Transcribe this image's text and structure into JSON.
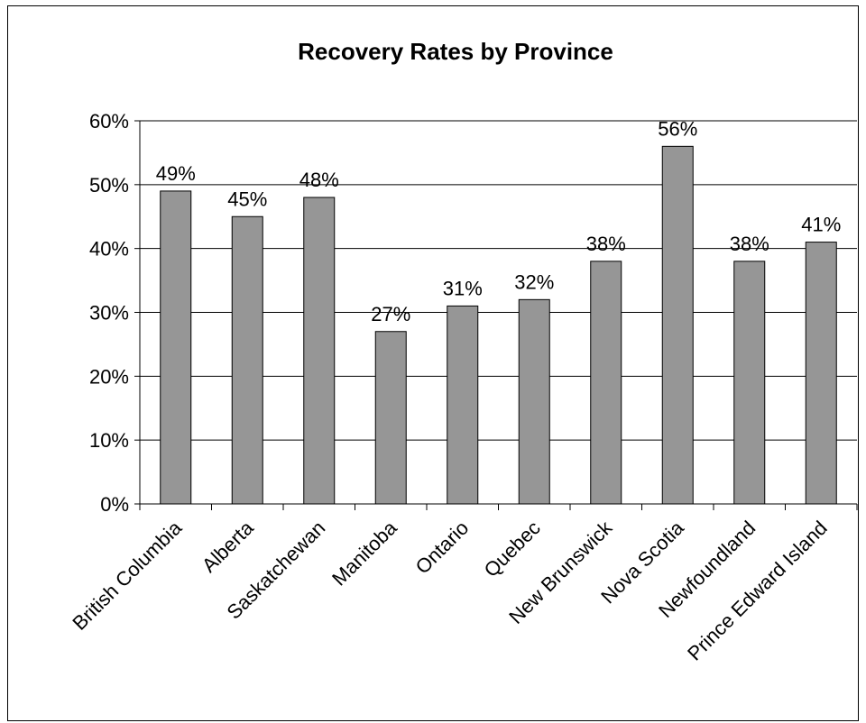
{
  "chart_data": {
    "type": "bar",
    "title": "Recovery Rates by Province",
    "xlabel": "",
    "ylabel": "",
    "categories": [
      "British Columbia",
      "Alberta",
      "Saskatchewan",
      "Manitoba",
      "Ontario",
      "Quebec",
      "New Brunswick",
      "Nova Scotia",
      "Newfoundland",
      "Prince Edward Island"
    ],
    "values": [
      0.49,
      0.45,
      0.48,
      0.27,
      0.31,
      0.32,
      0.38,
      0.56,
      0.38,
      0.41
    ],
    "data_labels": [
      "49%",
      "45%",
      "48%",
      "27%",
      "31%",
      "32%",
      "38%",
      "56%",
      "38%",
      "41%"
    ],
    "ylim": [
      0,
      0.6
    ],
    "yticks": [
      0,
      0.1,
      0.2,
      0.3,
      0.4,
      0.5,
      0.6
    ],
    "ytick_labels": [
      "0%",
      "10%",
      "20%",
      "30%",
      "40%",
      "50%",
      "60%"
    ],
    "grid": "horizontal",
    "legend": "none",
    "bar_color": "#969696",
    "bar_edge_color": "#000000"
  }
}
